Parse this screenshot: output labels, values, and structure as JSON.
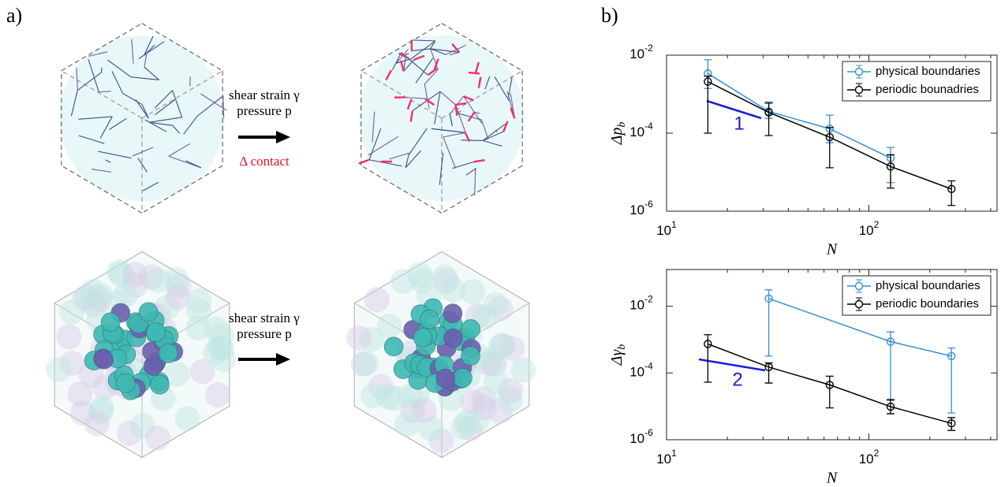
{
  "panel_labels": [
    "a)",
    "b)"
  ],
  "illustration": {
    "top_arrow": {
      "line1": "shear strain γ",
      "line2": "pressure p",
      "note": "Δ contact"
    },
    "bottom_arrow": {
      "line1": "shear strain γ",
      "line2": "pressure p"
    }
  },
  "chart_data": [
    {
      "type": "line",
      "log_x": true,
      "log_y": true,
      "xlabel": "N",
      "ylabel": "Δp",
      "ylabel_sub": "b",
      "xlim": [
        10,
        430
      ],
      "ylim": [
        1e-06,
        0.01
      ],
      "xticks": [
        {
          "value": 10,
          "label": "10",
          "exponent": "1"
        },
        {
          "value": 100,
          "label": "10",
          "exponent": "2"
        }
      ],
      "yticks": [
        {
          "value": 1e-06,
          "label": "10",
          "exponent": "-6"
        },
        {
          "value": 0.0001,
          "label": "10",
          "exponent": "-4"
        },
        {
          "value": 0.01,
          "label": "10",
          "exponent": "-2"
        }
      ],
      "legend": "upper right",
      "annotation": "1",
      "annotation_color": "#1a1ae0",
      "series": [
        {
          "name": "physical boundaries",
          "color": "#3a8fd0",
          "x": [
            16,
            32,
            64,
            128
          ],
          "values": [
            0.0034,
            0.00036,
            0.00013,
            2.3e-05
          ],
          "upper": [
            0.0076,
            0.00063,
            0.00029,
            4.3e-05
          ],
          "lower": [
            0.0014,
            0.00024,
            5.7e-05,
            5.4e-06
          ]
        },
        {
          "name": "periodic bounadries",
          "color": "#000000",
          "x": [
            16,
            32,
            64,
            128,
            256
          ],
          "values": [
            0.0021,
            0.00034,
            7.9e-05,
            1.4e-05,
            3.7e-06
          ],
          "upper": [
            0.0029,
            0.00059,
            0.00014,
            2.8e-05,
            6e-06
          ],
          "lower": [
            0.0001,
            8.7e-05,
            1.3e-05,
            3.9e-06,
            1.4e-06
          ]
        }
      ]
    },
    {
      "type": "line",
      "log_x": true,
      "log_y": true,
      "xlabel": "N",
      "ylabel": "Δγ",
      "ylabel_sub": "b",
      "xlim": [
        10,
        430
      ],
      "ylim": [
        1e-06,
        0.126
      ],
      "xticks": [
        {
          "value": 10,
          "label": "10",
          "exponent": "1"
        },
        {
          "value": 100,
          "label": "10",
          "exponent": "2"
        }
      ],
      "yticks": [
        {
          "value": 1e-06,
          "label": "10",
          "exponent": "-6"
        },
        {
          "value": 0.0001,
          "label": "10",
          "exponent": "-4"
        },
        {
          "value": 0.01,
          "label": "10",
          "exponent": "-2"
        }
      ],
      "legend": "upper right",
      "annotation": "2",
      "annotation_color": "#1a1ae0",
      "series": [
        {
          "name": "physical boundaries",
          "color": "#3a8fd0",
          "x": [
            32,
            128,
            256
          ],
          "values": [
            0.017,
            0.00087,
            0.00032
          ],
          "upper": [
            0.031,
            0.0017,
            0.00056
          ],
          "lower": [
            0.00032,
            1.5e-05,
            6.3e-06
          ]
        },
        {
          "name": "periodic boundaries",
          "color": "#000000",
          "x": [
            16,
            32,
            64,
            128,
            256
          ],
          "values": [
            0.00074,
            0.00015,
            4.4e-05,
            9.8e-06,
            3.1e-06
          ],
          "upper": [
            0.0014,
            0.0002,
            8e-05,
            1.6e-05,
            4.6e-06
          ],
          "lower": [
            5.3e-05,
            5e-05,
            9e-06,
            6e-06,
            1.9e-06
          ]
        }
      ]
    }
  ]
}
